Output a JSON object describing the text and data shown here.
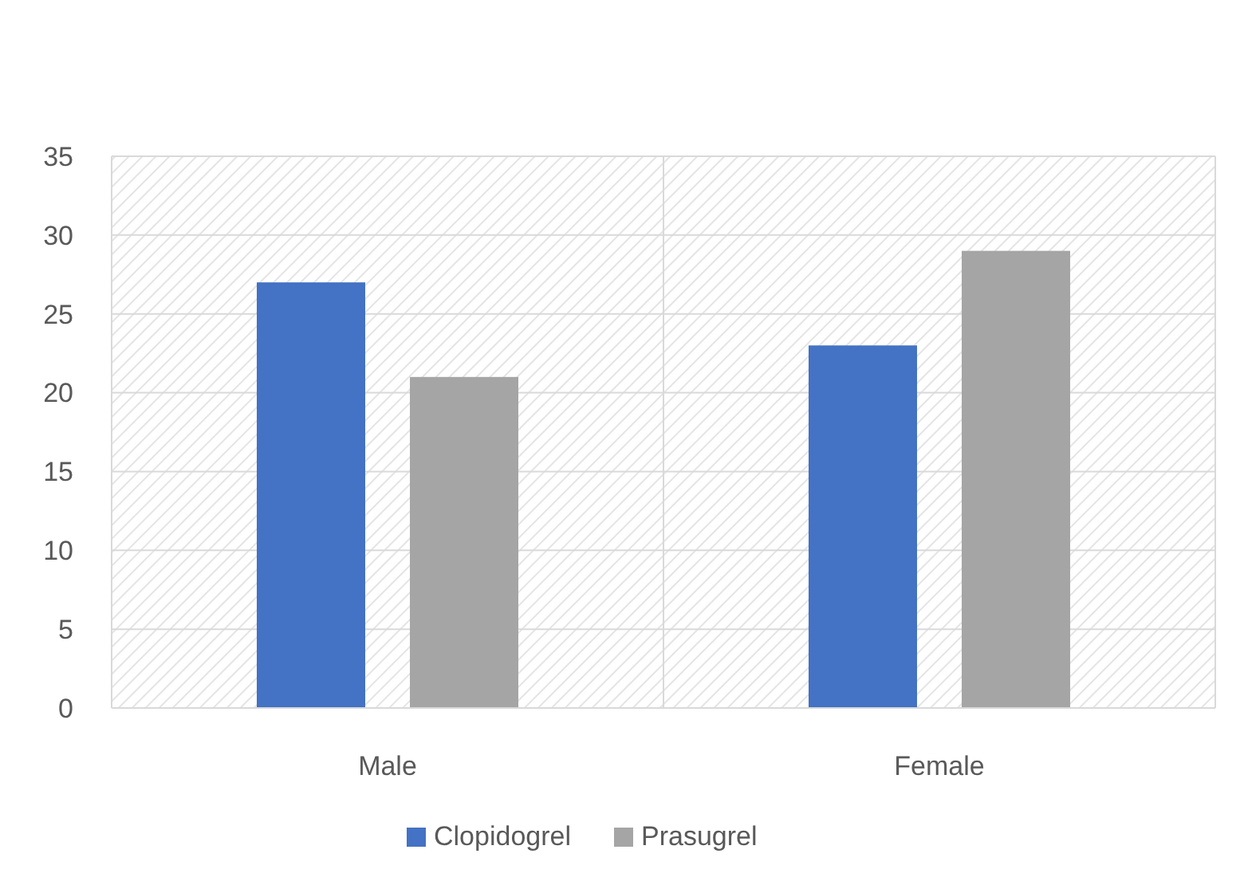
{
  "chart_data": {
    "type": "bar",
    "categories": [
      "Male",
      "Female"
    ],
    "series": [
      {
        "name": "Clopidogrel",
        "color": "#4472c4",
        "values": [
          27,
          23
        ]
      },
      {
        "name": "Prasugrel",
        "color": "#a5a5a5",
        "values": [
          21,
          29
        ]
      }
    ],
    "ylim": [
      0,
      35
    ],
    "yticks": [
      0,
      5,
      10,
      15,
      20,
      25,
      30,
      35
    ],
    "grid": true,
    "legend": "bottom"
  }
}
